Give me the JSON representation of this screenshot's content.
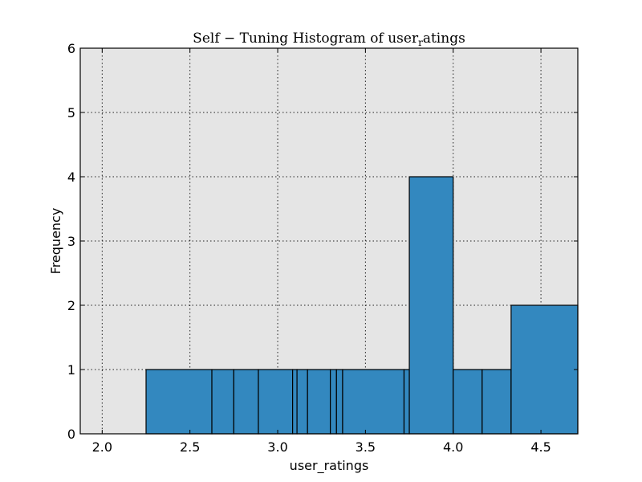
{
  "chart_data": {
    "type": "histogram",
    "title_prefix": "Self − Tuning Histogram of user",
    "title_subscript": "r",
    "title_suffix": "atings",
    "xlabel": "user_ratings",
    "ylabel": "Frequency",
    "xlim": [
      1.875,
      4.71
    ],
    "ylim": [
      0,
      6
    ],
    "xticks": [
      "2.0",
      "2.5",
      "3.0",
      "3.5",
      "4.0",
      "4.5"
    ],
    "yticks": [
      "0",
      "1",
      "2",
      "3",
      "4",
      "5",
      "6"
    ],
    "grid": true,
    "bar_color": "#3388bf",
    "plot_background": "#e5e5e5",
    "bins": [
      {
        "x0": 2.25,
        "x1": 2.625,
        "count": 1
      },
      {
        "x0": 2.625,
        "x1": 2.75,
        "count": 1
      },
      {
        "x0": 2.75,
        "x1": 2.89,
        "count": 1
      },
      {
        "x0": 2.89,
        "x1": 3.085,
        "count": 1
      },
      {
        "x0": 3.085,
        "x1": 3.11,
        "count": 1
      },
      {
        "x0": 3.11,
        "x1": 3.17,
        "count": 1
      },
      {
        "x0": 3.17,
        "x1": 3.3,
        "count": 1
      },
      {
        "x0": 3.3,
        "x1": 3.335,
        "count": 1
      },
      {
        "x0": 3.335,
        "x1": 3.37,
        "count": 1
      },
      {
        "x0": 3.37,
        "x1": 3.72,
        "count": 1
      },
      {
        "x0": 3.72,
        "x1": 3.75,
        "count": 1
      },
      {
        "x0": 3.75,
        "x1": 4.0,
        "count": 4
      },
      {
        "x0": 4.0,
        "x1": 4.165,
        "count": 1
      },
      {
        "x0": 4.165,
        "x1": 4.33,
        "count": 1
      },
      {
        "x0": 4.33,
        "x1": 4.71,
        "count": 2
      }
    ]
  }
}
